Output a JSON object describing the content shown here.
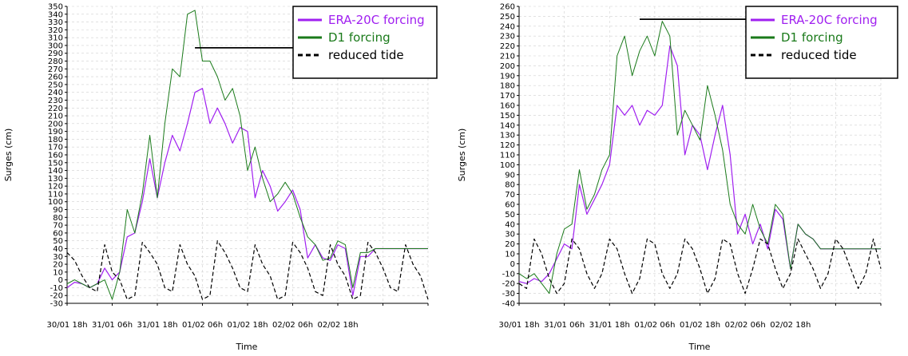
{
  "chart_data": [
    {
      "type": "line",
      "xlabel": "Time",
      "ylabel": "Surges (cm)",
      "ylim": [
        -30,
        350
      ],
      "yticks": [
        -30,
        -20,
        -10,
        0,
        10,
        20,
        30,
        40,
        50,
        60,
        70,
        80,
        90,
        100,
        110,
        120,
        130,
        140,
        150,
        160,
        170,
        180,
        190,
        200,
        210,
        220,
        230,
        240,
        250,
        260,
        270,
        280,
        290,
        300,
        310,
        320,
        330,
        340,
        350
      ],
      "xlim": [
        0,
        48
      ],
      "xticks": [
        0,
        6,
        12,
        18,
        24,
        30,
        36,
        42,
        48
      ],
      "xtick_labels": [
        {
          "top": "30/01",
          "bottom": "18h"
        },
        {
          "top": "31/01",
          "bottom": "06h"
        },
        {
          "top": "31/01",
          "bottom": "18h"
        },
        {
          "top": "01/02",
          "bottom": "06h"
        },
        {
          "top": "01/02",
          "bottom": "18h"
        },
        {
          "top": "02/02",
          "bottom": "06h"
        },
        {
          "top": "02/02",
          "bottom": "18h"
        },
        {
          "top": "",
          "bottom": ""
        },
        {
          "top": "",
          "bottom": ""
        }
      ],
      "x_unit": "hours since 30/01 18h",
      "grid": true,
      "legend_position": "top-right",
      "series": [
        {
          "name": "ERA-20C forcing",
          "color": "#a020f0",
          "x": [
            0,
            1,
            2,
            3,
            4,
            5,
            6,
            7,
            8,
            9,
            10,
            11,
            12,
            13,
            14,
            15,
            16,
            17,
            18,
            19,
            20,
            21,
            22,
            23,
            24,
            25,
            26,
            27,
            28,
            29,
            30,
            31,
            32,
            33,
            34,
            35,
            36,
            37,
            38,
            39,
            40,
            41,
            42,
            43,
            44,
            45,
            46,
            47,
            48
          ],
          "y": [
            -10,
            -3,
            -5,
            -10,
            -5,
            15,
            0,
            10,
            55,
            60,
            100,
            155,
            105,
            150,
            185,
            165,
            200,
            240,
            245,
            200,
            220,
            200,
            175,
            195,
            190,
            105,
            140,
            120,
            88,
            100,
            115,
            90,
            28,
            45,
            28,
            25,
            45,
            40,
            -20,
            30,
            30,
            40,
            40,
            40,
            40,
            40,
            40,
            40,
            40
          ]
        },
        {
          "name": "D1 forcing",
          "color": "#1a7a1a",
          "x": [
            0,
            1,
            2,
            3,
            4,
            5,
            6,
            7,
            8,
            9,
            10,
            11,
            12,
            13,
            14,
            15,
            16,
            17,
            18,
            19,
            20,
            21,
            22,
            23,
            24,
            25,
            26,
            27,
            28,
            29,
            30,
            31,
            32,
            33,
            34,
            35,
            36,
            37,
            38,
            39,
            40,
            41,
            42,
            43,
            44,
            45,
            46,
            47,
            48
          ],
          "y": [
            -5,
            0,
            -5,
            -10,
            -5,
            0,
            -25,
            10,
            90,
            60,
            110,
            185,
            105,
            200,
            270,
            260,
            340,
            345,
            280,
            280,
            260,
            230,
            245,
            210,
            140,
            170,
            130,
            100,
            110,
            125,
            110,
            80,
            55,
            45,
            25,
            28,
            50,
            45,
            -10,
            35,
            35,
            40,
            40,
            40,
            40,
            40,
            40,
            40,
            40
          ]
        },
        {
          "name": "reduced tide",
          "color": "#000000",
          "x": [
            0,
            1,
            2,
            3,
            4,
            5,
            6,
            7,
            8,
            9,
            10,
            11,
            12,
            13,
            14,
            15,
            16,
            17,
            18,
            19,
            20,
            21,
            22,
            23,
            24,
            25,
            26,
            27,
            28,
            29,
            30,
            31,
            32,
            33,
            34,
            35,
            36,
            37,
            38,
            39,
            40,
            41,
            42,
            43,
            44,
            45,
            46,
            47,
            48
          ],
          "y": [
            35,
            25,
            5,
            -10,
            -15,
            45,
            10,
            0,
            -25,
            -20,
            48,
            35,
            20,
            -10,
            -15,
            45,
            20,
            5,
            -25,
            -20,
            50,
            35,
            15,
            -10,
            -15,
            45,
            20,
            5,
            -25,
            -20,
            48,
            35,
            15,
            -15,
            -20,
            45,
            20,
            5,
            -25,
            -20,
            48,
            35,
            15,
            -10,
            -15,
            45,
            20,
            5,
            -25
          ]
        }
      ],
      "threshold_segment": {
        "x": [
          17,
          31
        ],
        "y": 297
      }
    },
    {
      "type": "line",
      "xlabel": "Time",
      "ylabel": "Surges (cm)",
      "ylim": [
        -40,
        260
      ],
      "yticks": [
        -40,
        -30,
        -20,
        -10,
        0,
        10,
        20,
        30,
        40,
        50,
        60,
        70,
        80,
        90,
        100,
        110,
        120,
        130,
        140,
        150,
        160,
        170,
        180,
        190,
        200,
        210,
        220,
        230,
        240,
        250,
        260
      ],
      "xlim": [
        0,
        48
      ],
      "xticks": [
        0,
        6,
        12,
        18,
        24,
        30,
        36,
        42,
        48
      ],
      "xtick_labels": [
        {
          "top": "30/01",
          "bottom": "18h"
        },
        {
          "top": "31/01",
          "bottom": "06h"
        },
        {
          "top": "31/01",
          "bottom": "18h"
        },
        {
          "top": "01/02",
          "bottom": "06h"
        },
        {
          "top": "01/02",
          "bottom": "18h"
        },
        {
          "top": "02/02",
          "bottom": "06h"
        },
        {
          "top": "02/02",
          "bottom": "18h"
        },
        {
          "top": "",
          "bottom": ""
        },
        {
          "top": "",
          "bottom": ""
        }
      ],
      "x_unit": "hours since 30/01 18h",
      "grid": true,
      "legend_position": "top-right",
      "series": [
        {
          "name": "ERA-20C forcing",
          "color": "#a020f0",
          "x": [
            0,
            1,
            2,
            3,
            4,
            5,
            6,
            7,
            8,
            9,
            10,
            11,
            12,
            13,
            14,
            15,
            16,
            17,
            18,
            19,
            20,
            21,
            22,
            23,
            24,
            25,
            26,
            27,
            28,
            29,
            30,
            31,
            32,
            33,
            34,
            35,
            36,
            37,
            38,
            39,
            40,
            41,
            42,
            43,
            44,
            45,
            46,
            47,
            48
          ],
          "y": [
            -18,
            -20,
            -15,
            -18,
            -10,
            5,
            20,
            15,
            80,
            50,
            65,
            80,
            100,
            160,
            150,
            160,
            140,
            155,
            150,
            160,
            220,
            200,
            110,
            140,
            130,
            95,
            130,
            160,
            110,
            30,
            50,
            20,
            40,
            15,
            55,
            45,
            -5,
            40,
            30,
            25,
            15,
            15,
            15,
            15,
            15,
            15,
            15,
            15,
            15
          ]
        },
        {
          "name": "D1 forcing",
          "color": "#1a7a1a",
          "x": [
            0,
            1,
            2,
            3,
            4,
            5,
            6,
            7,
            8,
            9,
            10,
            11,
            12,
            13,
            14,
            15,
            16,
            17,
            18,
            19,
            20,
            21,
            22,
            23,
            24,
            25,
            26,
            27,
            28,
            29,
            30,
            31,
            32,
            33,
            34,
            35,
            36,
            37,
            38,
            39,
            40,
            41,
            42,
            43,
            44,
            45,
            46,
            47,
            48
          ],
          "y": [
            -10,
            -15,
            -10,
            -20,
            -30,
            10,
            35,
            40,
            95,
            55,
            70,
            95,
            110,
            210,
            230,
            190,
            215,
            230,
            210,
            245,
            230,
            130,
            155,
            140,
            125,
            180,
            150,
            115,
            60,
            40,
            30,
            60,
            35,
            20,
            60,
            50,
            -5,
            40,
            30,
            25,
            15,
            15,
            15,
            15,
            15,
            15,
            15,
            15,
            15
          ]
        },
        {
          "name": "reduced tide",
          "color": "#000000",
          "x": [
            0,
            1,
            2,
            3,
            4,
            5,
            6,
            7,
            8,
            9,
            10,
            11,
            12,
            13,
            14,
            15,
            16,
            17,
            18,
            19,
            20,
            21,
            22,
            23,
            24,
            25,
            26,
            27,
            28,
            29,
            30,
            31,
            32,
            33,
            34,
            35,
            36,
            37,
            38,
            39,
            40,
            41,
            42,
            43,
            44,
            45,
            46,
            47,
            48
          ],
          "y": [
            -20,
            -25,
            25,
            10,
            -15,
            -30,
            -20,
            25,
            15,
            -10,
            -25,
            -10,
            25,
            15,
            -10,
            -30,
            -15,
            25,
            20,
            -10,
            -25,
            -10,
            25,
            15,
            -5,
            -30,
            -15,
            25,
            20,
            -10,
            -30,
            -5,
            25,
            20,
            -5,
            -25,
            -10,
            25,
            10,
            -5,
            -25,
            -10,
            25,
            15,
            -5,
            -25,
            -10,
            25,
            -5
          ]
        }
      ],
      "threshold_segment": {
        "x": [
          16,
          31
        ],
        "y": 247
      }
    }
  ]
}
